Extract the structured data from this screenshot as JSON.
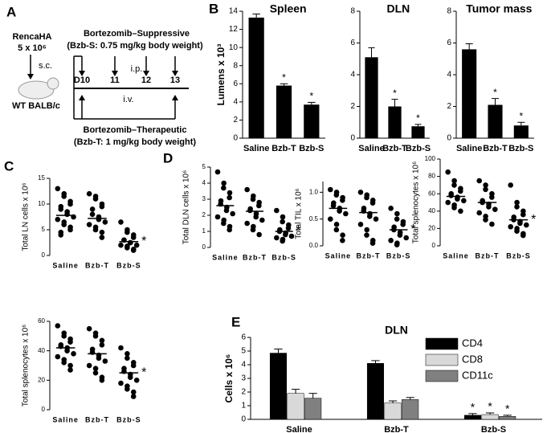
{
  "panel_labels": [
    "A",
    "B",
    "C",
    "D",
    "E"
  ],
  "diagram": {
    "tumor": "RencaHA",
    "dose": "5 x 10⁶",
    "route_sc": "s.c.",
    "mouse": "WT BALB/c",
    "suppressive_title": "Bortezomib–Suppressive",
    "suppressive_dose": "(Bzb-S: 0.75 mg/kg body weight)",
    "days": [
      "D10",
      "11",
      "12",
      "13"
    ],
    "route_ip": "i.p.",
    "route_iv": "i.v.",
    "therapeutic_title": "Bortezomib–Therapeutic",
    "therapeutic_dose": "(Bzb-T: 1 mg/kg body weight)"
  },
  "chart_data": [
    {
      "type": "bar",
      "title": "Spleen",
      "ylabel": "Lumens x 10³",
      "categories": [
        "Saline",
        "Bzb-T",
        "Bzb-S"
      ],
      "values": [
        13.3,
        5.8,
        3.7
      ],
      "errors": [
        0.4,
        0.2,
        0.25
      ],
      "markers": [
        null,
        "*",
        "*"
      ],
      "color": "#000000",
      "ylim": [
        0,
        14
      ],
      "yticks": [
        0,
        2,
        4,
        6,
        8,
        10,
        12,
        14
      ]
    },
    {
      "type": "bar",
      "title": "DLN",
      "categories": [
        "Saline",
        "Bzb-T",
        "Bzb-S"
      ],
      "values": [
        5.1,
        2.0,
        0.75
      ],
      "errors": [
        0.6,
        0.45,
        0.12
      ],
      "markers": [
        null,
        "*",
        "*"
      ],
      "color": "#000000",
      "ylim": [
        0,
        8
      ],
      "yticks": [
        0,
        2,
        4,
        6,
        8
      ]
    },
    {
      "type": "bar",
      "title": "Tumor mass",
      "categories": [
        "Saline",
        "Bzb-T",
        "Bzb-S"
      ],
      "values": [
        5.6,
        2.1,
        0.8
      ],
      "errors": [
        0.35,
        0.4,
        0.2
      ],
      "markers": [
        null,
        "*",
        "*"
      ],
      "color": "#000000",
      "ylim": [
        0,
        8
      ],
      "yticks": [
        0,
        2,
        4,
        6,
        8
      ]
    },
    {
      "type": "dotplot",
      "ylabel": "Total LN cells x 10⁶",
      "categories": [
        "Saline",
        "Bzb-T",
        "Bzb-S"
      ],
      "values": [
        [
          13,
          12,
          11.5,
          10.5,
          10,
          9.5,
          9,
          8.5,
          8,
          7.5,
          7,
          6.5,
          6,
          5.5,
          5,
          4.5,
          4
        ],
        [
          12,
          11.5,
          11,
          10,
          9.5,
          9,
          8,
          7.5,
          7,
          6.5,
          6,
          5.5,
          5,
          4.5,
          3.5
        ],
        [
          6.5,
          5,
          4.5,
          4,
          3.5,
          3,
          3,
          2.5,
          2.5,
          2,
          2,
          1.8,
          1.5,
          1.2,
          1
        ]
      ],
      "means": [
        7.8,
        7.2,
        2.7
      ],
      "markers": [
        null,
        null,
        "*"
      ],
      "color": "#000000",
      "ylim": [
        0,
        15
      ],
      "yticks": [
        0,
        5,
        10,
        15
      ]
    },
    {
      "type": "dotplot",
      "ylabel": "Total splenocytes x 10⁶",
      "categories": [
        "Saline",
        "Bzb-T",
        "Bzb-S"
      ],
      "values": [
        [
          57,
          52,
          50,
          48,
          46,
          44,
          43,
          42,
          40,
          38,
          36,
          34,
          32,
          30,
          27
        ],
        [
          55,
          52,
          50,
          47,
          44,
          41,
          39,
          37,
          35,
          33,
          30,
          28,
          25,
          22,
          20
        ],
        [
          42,
          38,
          35,
          32,
          30,
          28,
          26,
          24,
          22,
          20,
          18,
          16,
          14,
          12,
          9
        ]
      ],
      "means": [
        42,
        38,
        25
      ],
      "markers": [
        null,
        null,
        "*"
      ],
      "color": "#000000",
      "ylim": [
        0,
        60
      ],
      "yticks": [
        0,
        20,
        40,
        60
      ]
    },
    {
      "type": "dotplot",
      "ylabel": "Total DLN cells x 10⁶",
      "categories": [
        "Saline",
        "Bzb-T",
        "Bzb-S"
      ],
      "values": [
        [
          4.7,
          4.0,
          3.7,
          3.4,
          3.1,
          2.9,
          2.7,
          2.5,
          2.3,
          2.1,
          1.9,
          1.7,
          1.5,
          1.3,
          1.1
        ],
        [
          3.6,
          3.2,
          3.0,
          2.8,
          2.6,
          2.4,
          2.3,
          2.1,
          1.9,
          1.7,
          1.5,
          1.3,
          1.1,
          0.8
        ],
        [
          2.3,
          1.9,
          1.6,
          1.4,
          1.2,
          1.1,
          1.0,
          0.9,
          0.8,
          0.7,
          0.6,
          0.5,
          0.4
        ]
      ],
      "means": [
        2.6,
        2.25,
        1.0
      ],
      "markers": [
        null,
        null,
        "*"
      ],
      "color": "#000000",
      "ylim": [
        0,
        5
      ],
      "yticks": [
        0,
        1,
        2,
        3,
        4,
        5
      ]
    },
    {
      "type": "dotplot",
      "ylabel": "Total TIL x 10⁶",
      "categories": [
        "Saline",
        "Bzb-T",
        "Bzb-S"
      ],
      "values": [
        [
          1.05,
          1.0,
          0.95,
          0.9,
          0.85,
          0.8,
          0.75,
          0.7,
          0.65,
          0.6,
          0.5,
          0.4,
          0.3,
          0.2,
          0.1
        ],
        [
          1.0,
          0.95,
          0.9,
          0.85,
          0.8,
          0.7,
          0.65,
          0.6,
          0.55,
          0.5,
          0.4,
          0.3,
          0.2,
          0.1,
          0.05
        ],
        [
          0.7,
          0.6,
          0.5,
          0.45,
          0.4,
          0.35,
          0.3,
          0.25,
          0.2,
          0.15,
          0.1,
          0.05,
          0.02
        ]
      ],
      "means": [
        0.7,
        0.62,
        0.3
      ],
      "markers": [
        null,
        null,
        "*"
      ],
      "color": "#000000",
      "ylim": [
        0,
        1.2
      ],
      "yticks": [
        {
          "value": 0,
          "label": "0.0"
        },
        {
          "value": 0.5,
          "label": "0.5"
        },
        {
          "value": 1,
          "label": "1.0"
        }
      ]
    },
    {
      "type": "dotplot",
      "ylabel": "Total splenocytes x 10⁶",
      "categories": [
        "Saline",
        "Bzb-T",
        "Bzb-S"
      ],
      "values": [
        [
          85,
          75,
          70,
          66,
          63,
          60,
          58,
          56,
          54,
          52,
          50,
          47,
          44,
          40
        ],
        [
          75,
          70,
          65,
          60,
          56,
          52,
          50,
          48,
          45,
          42,
          38,
          34,
          30,
          25
        ],
        [
          70,
          50,
          45,
          40,
          36,
          33,
          30,
          28,
          26,
          24,
          22,
          20,
          17,
          14,
          12
        ]
      ],
      "means": [
        57,
        50,
        30
      ],
      "markers": [
        null,
        null,
        "*"
      ],
      "color": "#000000",
      "ylim": [
        0,
        100
      ],
      "yticks": [
        0,
        20,
        40,
        60,
        80,
        100
      ]
    },
    {
      "type": "groupedbar",
      "title": "DLN",
      "ylabel": "Cells x 10⁶",
      "categories": [
        "Saline",
        "Bzb-T",
        "Bzb-S"
      ],
      "series": [
        {
          "name": "CD4",
          "color": "#000000",
          "values": [
            4.85,
            4.1,
            0.3
          ],
          "errors": [
            0.3,
            0.2,
            0.12
          ],
          "markers": [
            null,
            null,
            "*"
          ]
        },
        {
          "name": "CD8",
          "color": "#d9d9d9",
          "values": [
            1.9,
            1.2,
            0.35
          ],
          "errors": [
            0.3,
            0.15,
            0.12
          ],
          "markers": [
            null,
            null,
            "*"
          ]
        },
        {
          "name": "CD11c",
          "color": "#808080",
          "values": [
            1.55,
            1.45,
            0.22
          ],
          "errors": [
            0.35,
            0.15,
            0.08
          ],
          "markers": [
            null,
            null,
            "*"
          ]
        }
      ],
      "ylim": [
        0,
        6
      ],
      "yticks": [
        0,
        1,
        2,
        3,
        4,
        5,
        6
      ]
    }
  ]
}
